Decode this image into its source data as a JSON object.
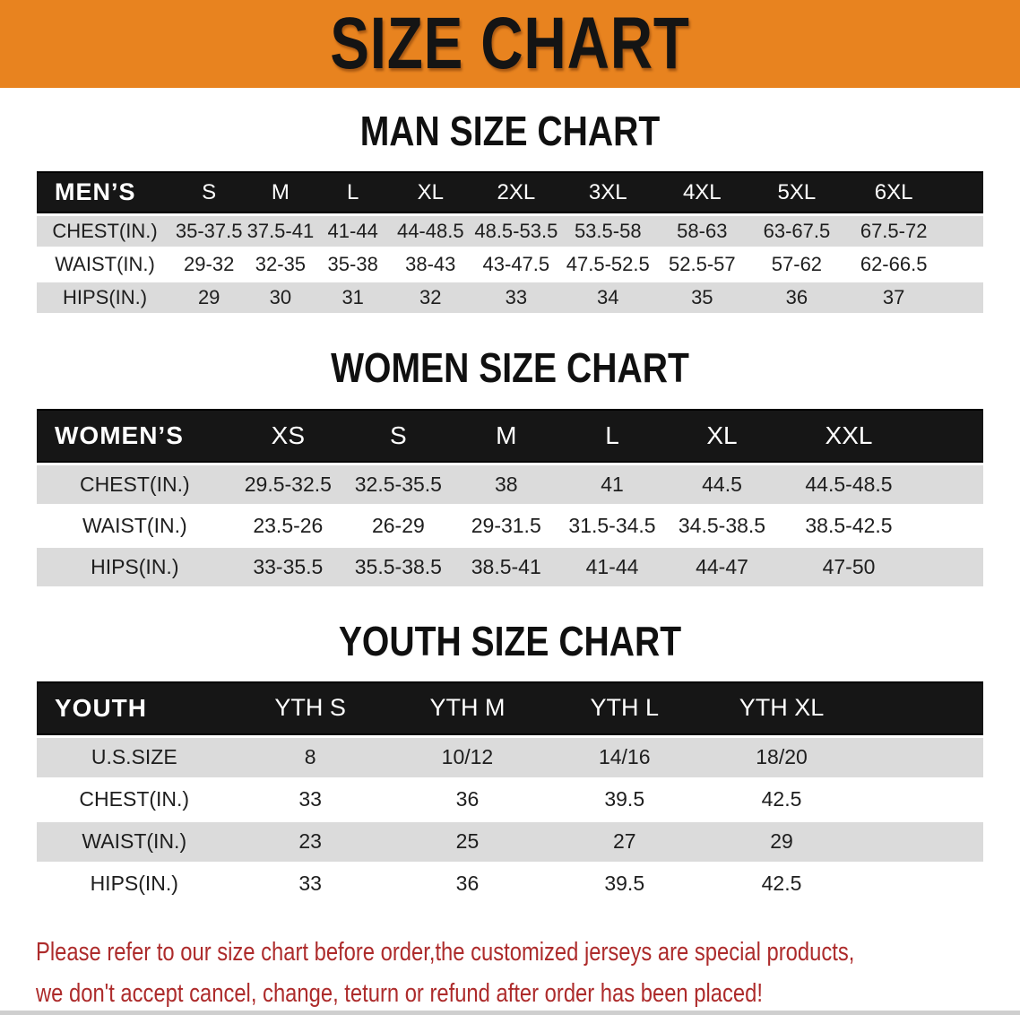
{
  "banner": {
    "title": "SIZE CHART"
  },
  "colors": {
    "banner_bg": "#E8831F",
    "header_band": "#161616",
    "row_stripe": "#DBDBDB",
    "disclaimer_red": "#AD2B2B"
  },
  "sections": [
    {
      "heading": "MAN SIZE CHART",
      "header_label": "MEN’S",
      "columns": [
        "S",
        "M",
        "L",
        "XL",
        "2XL",
        "3XL",
        "4XL",
        "5XL",
        "6XL"
      ],
      "rows": [
        {
          "label": "CHEST(IN.)",
          "values": [
            "35-37.5",
            "37.5-41",
            "41-44",
            "44-48.5",
            "48.5-53.5",
            "53.5-58",
            "58-63",
            "63-67.5",
            "67.5-72"
          ]
        },
        {
          "label": "WAIST(IN.)",
          "values": [
            "29-32",
            "32-35",
            "35-38",
            "38-43",
            "43-47.5",
            "47.5-52.5",
            "52.5-57",
            "57-62",
            "62-66.5"
          ]
        },
        {
          "label": "HIPS(IN.)",
          "values": [
            "29",
            "30",
            "31",
            "32",
            "33",
            "34",
            "35",
            "36",
            "37"
          ]
        }
      ]
    },
    {
      "heading": "WOMEN SIZE CHART",
      "header_label": "WOMEN’S",
      "columns": [
        "XS",
        "S",
        "M",
        "L",
        "XL",
        "XXL"
      ],
      "rows": [
        {
          "label": "CHEST(IN.)",
          "values": [
            "29.5-32.5",
            "32.5-35.5",
            "38",
            "41",
            "44.5",
            "44.5-48.5"
          ]
        },
        {
          "label": "WAIST(IN.)",
          "values": [
            "23.5-26",
            "26-29",
            "29-31.5",
            "31.5-34.5",
            "34.5-38.5",
            "38.5-42.5"
          ]
        },
        {
          "label": "HIPS(IN.)",
          "values": [
            "33-35.5",
            "35.5-38.5",
            "38.5-41",
            "41-44",
            "44-47",
            "47-50"
          ]
        }
      ]
    },
    {
      "heading": "YOUTH SIZE CHART",
      "header_label": "YOUTH",
      "columns": [
        "YTH S",
        "YTH M",
        "YTH L",
        "YTH XL"
      ],
      "rows": [
        {
          "label": "U.S.SIZE",
          "values": [
            "8",
            "10/12",
            "14/16",
            "18/20"
          ]
        },
        {
          "label": "CHEST(IN.)",
          "values": [
            "33",
            "36",
            "39.5",
            "42.5"
          ]
        },
        {
          "label": "WAIST(IN.)",
          "values": [
            "23",
            "25",
            "27",
            "29"
          ]
        },
        {
          "label": "HIPS(IN.)",
          "values": [
            "33",
            "36",
            "39.5",
            "42.5"
          ]
        }
      ]
    }
  ],
  "disclaimer": {
    "line1": "Please refer to our size chart before order,the customized jerseys are special products,",
    "line2": "we don't accept cancel, change, teturn or refund after order has been placed!"
  }
}
